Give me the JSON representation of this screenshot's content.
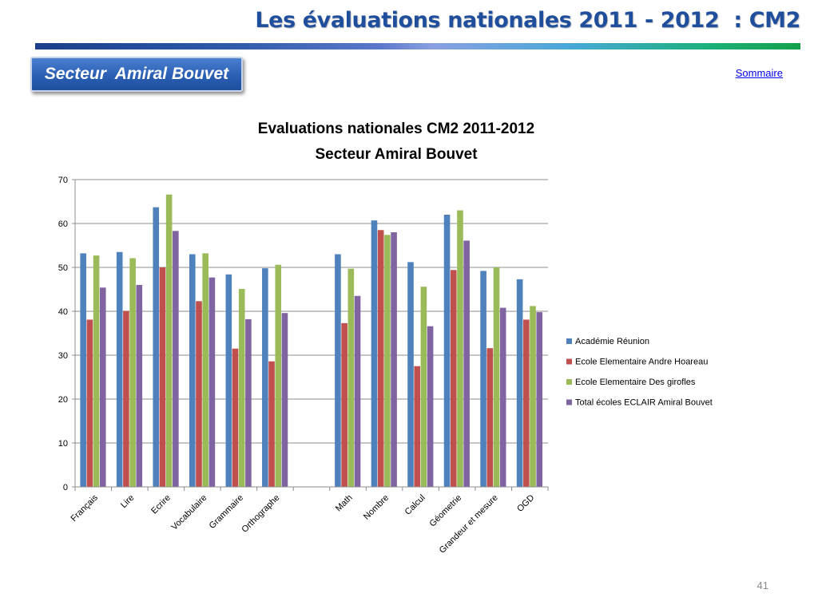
{
  "header": {
    "title": "Les évaluations nationales 2011 - 2012  : CM2",
    "sector_label": "Secteur  Amiral Bouvet",
    "sommaire_link": "Sommaire"
  },
  "footer": {
    "page_number": "41"
  },
  "colors": {
    "title": "#1f4e9c",
    "accent": "#2a5fb4"
  },
  "chart_data": {
    "type": "bar",
    "title": "Evaluations nationales CM2 2011-2012",
    "subtitle": "Secteur Amiral Bouvet",
    "xlabel": "",
    "ylabel": "",
    "ylim": [
      0,
      70
    ],
    "yticks": [
      0,
      10,
      20,
      30,
      40,
      50,
      60,
      70
    ],
    "grid": true,
    "legend_position": "right",
    "categories": [
      "Français",
      "Lire",
      "Ecrire",
      "Vocabulaire",
      "Grammaire",
      "Orthographe",
      "",
      "Math",
      "Nombre",
      "Calcul",
      "Géometrie",
      "Grandeur et mesure",
      "OGD"
    ],
    "series": [
      {
        "name": "Académie Réunion",
        "color": "#4f81bd",
        "values": [
          53.2,
          53.5,
          63.7,
          53.0,
          48.4,
          49.8,
          null,
          53.0,
          60.7,
          51.2,
          62.0,
          49.2,
          47.3
        ]
      },
      {
        "name": "Ecole Elementaire Andre Hoareau",
        "color": "#c0504d",
        "values": [
          38.1,
          40.1,
          50.0,
          42.3,
          31.5,
          28.6,
          null,
          37.3,
          58.5,
          27.5,
          49.4,
          31.6,
          38.1
        ]
      },
      {
        "name": "Ecole Elementaire Des girofles",
        "color": "#9bbb59",
        "values": [
          52.7,
          52.1,
          66.6,
          53.2,
          45.1,
          50.6,
          null,
          49.7,
          57.4,
          45.6,
          63.0,
          50.0,
          41.2
        ]
      },
      {
        "name": "Total écoles ECLAIR Amiral Bouvet",
        "color": "#8064a2",
        "values": [
          45.4,
          46.0,
          58.3,
          47.7,
          38.2,
          39.6,
          null,
          43.5,
          58.0,
          36.6,
          56.1,
          40.8,
          39.8
        ]
      }
    ]
  }
}
